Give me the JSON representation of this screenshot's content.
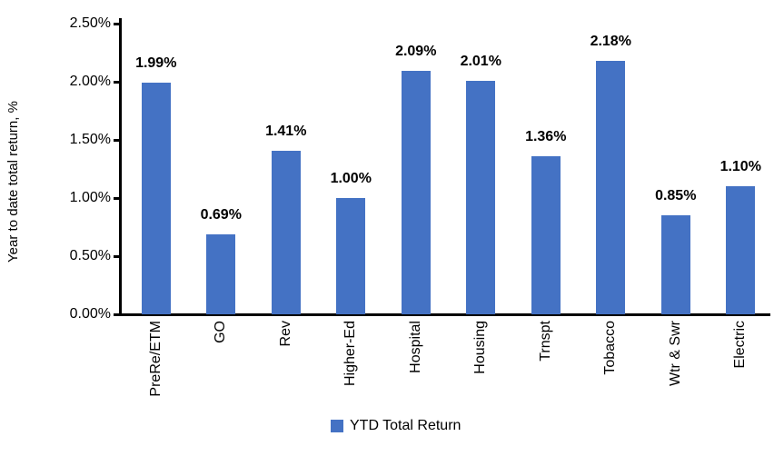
{
  "chart_data": {
    "type": "bar",
    "categories": [
      "PreRe/ETM",
      "GO",
      "Rev",
      "Higher-Ed",
      "Hospital",
      "Housing",
      "Trnspt",
      "Tobacco",
      "Wtr & Swr",
      "Electric"
    ],
    "values": [
      1.99,
      0.69,
      1.41,
      1.0,
      2.09,
      2.01,
      1.36,
      2.18,
      0.85,
      1.1
    ],
    "value_labels": [
      "1.99%",
      "0.69%",
      "1.41%",
      "1.00%",
      "2.09%",
      "2.01%",
      "1.36%",
      "2.18%",
      "0.85%",
      "1.10%"
    ],
    "title": "",
    "xlabel": "",
    "ylabel": "Year to date total return, %",
    "y_ticks": [
      "2.50%",
      "2.00%",
      "1.50%",
      "1.00%",
      "0.50%",
      "0.00%"
    ],
    "ylim": [
      0,
      2.5
    ],
    "grid": false,
    "legend_position": "bottom",
    "series_name": "YTD Total Return"
  },
  "legend": {
    "label": "YTD Total Return"
  },
  "colors": {
    "bar": "#4472C4",
    "axis": "#000000",
    "text": "#000000",
    "background": "#FFFFFF"
  }
}
